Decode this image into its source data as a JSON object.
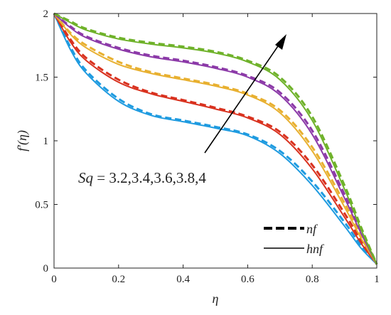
{
  "chart_data": {
    "type": "line",
    "xlabel": "η",
    "ylabel": "f′(η)",
    "xlim": [
      0,
      1
    ],
    "ylim": [
      0,
      2
    ],
    "xticks": [
      "0",
      "0.2",
      "0.4",
      "0.6",
      "0.8",
      "1"
    ],
    "yticks": [
      "0",
      "0.5",
      "1",
      "1.5",
      "2"
    ],
    "grid": false,
    "annotation": {
      "variable": "Sq",
      "text": " = 3.2,3.4,3.6,3.8,4",
      "arrow_direction": "increasing Sq"
    },
    "legend": {
      "placement": "bottom-right",
      "entries": [
        {
          "label": "nf",
          "style": "dashed"
        },
        {
          "label": "hnf",
          "style": "solid"
        }
      ]
    },
    "series": [
      {
        "Sq": 3.2,
        "color": "#1f9be0",
        "x": [
          0,
          0.05,
          0.1,
          0.2,
          0.3,
          0.4,
          0.5,
          0.6,
          0.7,
          0.8,
          0.9,
          0.95,
          1
        ],
        "hnf": [
          2,
          1.72,
          1.53,
          1.31,
          1.2,
          1.15,
          1.1,
          1.04,
          0.9,
          0.65,
          0.33,
          0.16,
          0.03
        ],
        "nf": [
          2,
          1.74,
          1.55,
          1.33,
          1.21,
          1.16,
          1.11,
          1.05,
          0.92,
          0.68,
          0.36,
          0.18,
          0.03
        ]
      },
      {
        "Sq": 3.4,
        "color": "#d9321f",
        "x": [
          0,
          0.05,
          0.1,
          0.2,
          0.3,
          0.4,
          0.5,
          0.6,
          0.7,
          0.8,
          0.9,
          0.95,
          1
        ],
        "hnf": [
          2,
          1.78,
          1.63,
          1.46,
          1.37,
          1.31,
          1.25,
          1.18,
          1.05,
          0.78,
          0.4,
          0.2,
          0.03
        ],
        "nf": [
          2,
          1.8,
          1.65,
          1.48,
          1.38,
          1.32,
          1.26,
          1.19,
          1.07,
          0.81,
          0.43,
          0.22,
          0.03
        ]
      },
      {
        "Sq": 3.6,
        "color": "#e8b030",
        "x": [
          0,
          0.05,
          0.1,
          0.2,
          0.3,
          0.4,
          0.5,
          0.6,
          0.7,
          0.8,
          0.9,
          0.95,
          1
        ],
        "hnf": [
          2,
          1.84,
          1.73,
          1.6,
          1.53,
          1.48,
          1.43,
          1.36,
          1.22,
          0.92,
          0.48,
          0.24,
          0.03
        ],
        "nf": [
          2,
          1.85,
          1.75,
          1.62,
          1.54,
          1.49,
          1.44,
          1.37,
          1.24,
          0.95,
          0.51,
          0.26,
          0.03
        ]
      },
      {
        "Sq": 3.8,
        "color": "#8c3aa8",
        "x": [
          0,
          0.05,
          0.1,
          0.2,
          0.3,
          0.4,
          0.5,
          0.6,
          0.7,
          0.8,
          0.9,
          0.95,
          1
        ],
        "hnf": [
          2,
          1.89,
          1.81,
          1.72,
          1.66,
          1.62,
          1.57,
          1.5,
          1.36,
          1.05,
          0.55,
          0.28,
          0.03
        ],
        "nf": [
          2,
          1.9,
          1.82,
          1.73,
          1.67,
          1.63,
          1.58,
          1.51,
          1.38,
          1.08,
          0.58,
          0.3,
          0.03
        ]
      },
      {
        "Sq": 4,
        "color": "#6fb22a",
        "x": [
          0,
          0.05,
          0.1,
          0.2,
          0.3,
          0.4,
          0.5,
          0.6,
          0.7,
          0.8,
          0.9,
          0.95,
          1
        ],
        "hnf": [
          2,
          1.93,
          1.87,
          1.8,
          1.76,
          1.73,
          1.69,
          1.62,
          1.48,
          1.16,
          0.62,
          0.31,
          0.03
        ],
        "nf": [
          2,
          1.94,
          1.88,
          1.81,
          1.77,
          1.74,
          1.7,
          1.63,
          1.5,
          1.19,
          0.65,
          0.33,
          0.03
        ]
      }
    ]
  }
}
